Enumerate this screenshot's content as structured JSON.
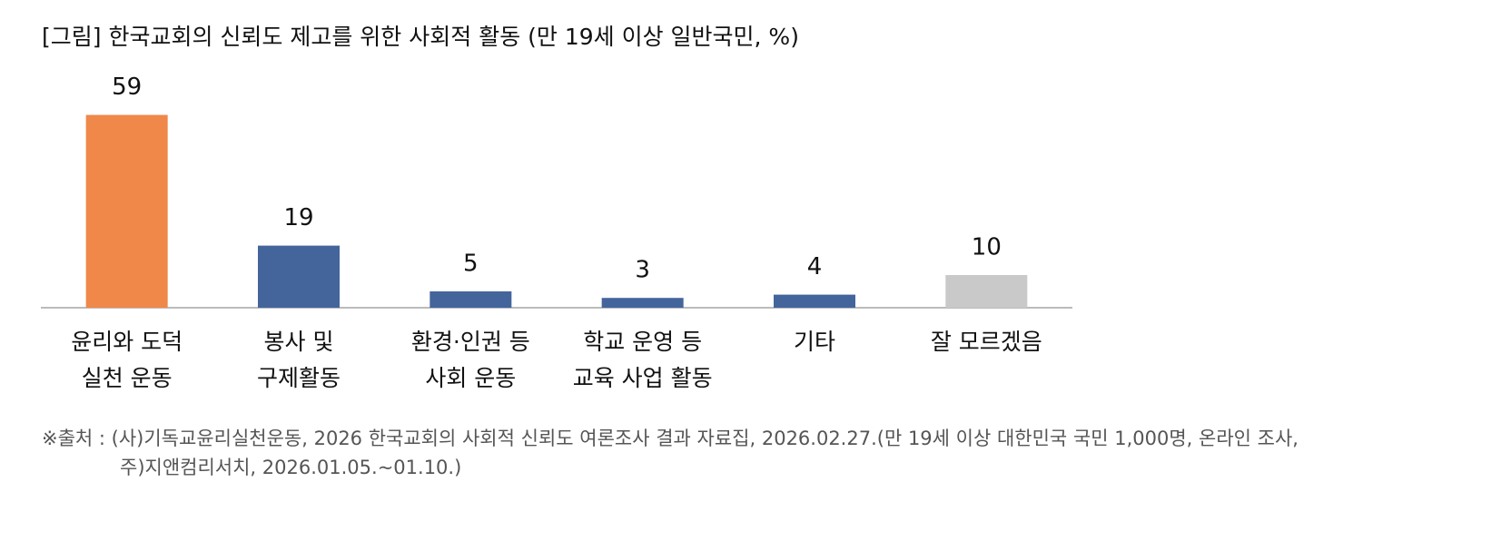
{
  "chart_data": {
    "type": "bar",
    "title": "[그림] 한국교회의 신뢰도 제고를 위한 사회적 활동 (만 19세 이상 일반국민, %)",
    "categories": [
      [
        "윤리와 도덕",
        "실천 운동"
      ],
      [
        "봉사 및",
        "구제활동"
      ],
      [
        "환경·인권 등",
        "사회 운동"
      ],
      [
        "학교 운영 등",
        "교육 사업 활동"
      ],
      [
        "기타"
      ],
      [
        "잘 모르겠음"
      ]
    ],
    "values": [
      59,
      19,
      5,
      3,
      4,
      10
    ],
    "colors": [
      "#f0884a",
      "#43659b",
      "#43659b",
      "#43659b",
      "#43659b",
      "#c9c9c9"
    ],
    "ylim": [
      0,
      60
    ],
    "source": [
      "※출처 : (사)기독교윤리실천운동, 2026 한국교회의 사회적 신뢰도 여론조사 결과 자료집, 2026.02.27.(만 19세 이상 대한민국 국민 1,000명, 온라인 조사,",
      "주)지앤컴리서치, 2026.01.05.~01.10.)"
    ]
  }
}
